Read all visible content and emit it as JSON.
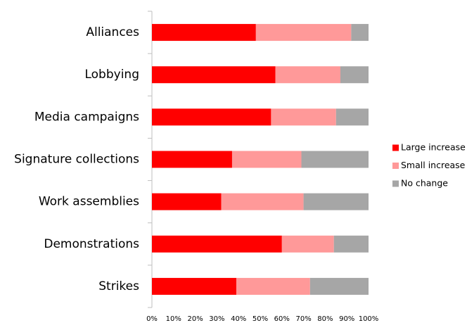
{
  "chart_data": {
    "type": "stacked_bar_horizontal",
    "categories": [
      "Alliances",
      "Lobbying",
      "Media campaigns",
      "Signature collections",
      "Work assemblies",
      "Demonstrations",
      "Strikes"
    ],
    "series": [
      {
        "name": "Large increase",
        "color": "#ff0000",
        "values": [
          48,
          57,
          55,
          37,
          32,
          60,
          39
        ]
      },
      {
        "name": "Small increase",
        "color": "#ff9999",
        "values": [
          44,
          30,
          30,
          32,
          38,
          24,
          34
        ]
      },
      {
        "name": "No change",
        "color": "#a6a6a6",
        "values": [
          8,
          13,
          15,
          31,
          30,
          16,
          27
        ]
      }
    ],
    "xlim": [
      0,
      100
    ],
    "xticks": [
      {
        "value": 0,
        "label": "0%"
      },
      {
        "value": 10,
        "label": "10%"
      },
      {
        "value": 20,
        "label": "20%"
      },
      {
        "value": 30,
        "label": "30%"
      },
      {
        "value": 40,
        "label": "40%"
      },
      {
        "value": 50,
        "label": "50%"
      },
      {
        "value": 60,
        "label": "60%"
      },
      {
        "value": 70,
        "label": "70%"
      },
      {
        "value": 80,
        "label": "80%"
      },
      {
        "value": 90,
        "label": "90%"
      },
      {
        "value": 100,
        "label": "100%"
      }
    ],
    "legend": "right"
  }
}
